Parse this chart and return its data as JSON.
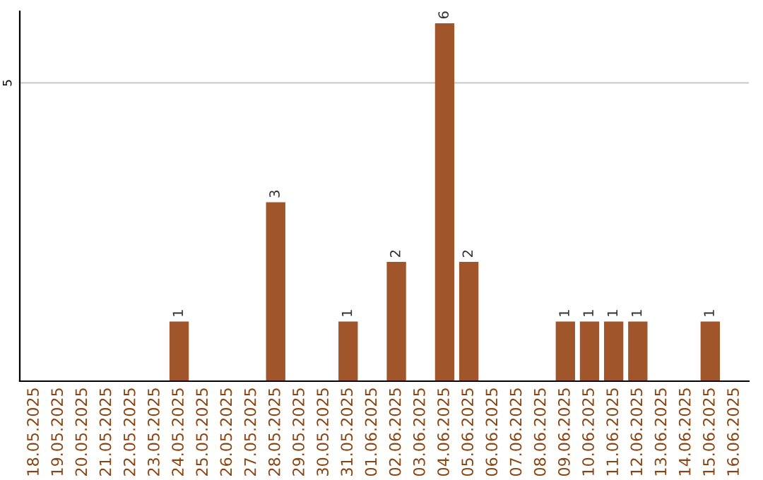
{
  "chart_data": {
    "type": "bar",
    "categories": [
      "18.05.2025",
      "19.05.2025",
      "20.05.2025",
      "21.05.2025",
      "22.05.2025",
      "23.05.2025",
      "24.05.2025",
      "25.05.2025",
      "26.05.2025",
      "27.05.2025",
      "28.05.2025",
      "29.05.2025",
      "30.05.2025",
      "31.05.2025",
      "01.06.2025",
      "02.06.2025",
      "03.06.2025",
      "04.06.2025",
      "05.06.2025",
      "06.06.2025",
      "07.06.2025",
      "08.06.2025",
      "09.06.2025",
      "10.06.2025",
      "11.06.2025",
      "12.06.2025",
      "13.06.2025",
      "14.06.2025",
      "15.06.2025",
      "16.06.2025"
    ],
    "values": [
      0,
      0,
      0,
      0,
      0,
      0,
      1,
      0,
      0,
      0,
      3,
      0,
      0,
      1,
      0,
      2,
      0,
      6,
      2,
      0,
      0,
      0,
      1,
      1,
      1,
      1,
      0,
      0,
      1,
      0
    ],
    "value_labels": [
      null,
      null,
      null,
      null,
      null,
      null,
      "1",
      null,
      null,
      null,
      "3",
      null,
      null,
      "1",
      null,
      "2",
      null,
      "6",
      "2",
      null,
      null,
      null,
      "1",
      "1",
      "1",
      "1",
      null,
      null,
      "1",
      null
    ],
    "color": "#a0552a",
    "ylim": [
      0,
      6.2
    ],
    "yticks": [
      5
    ],
    "grid": "y"
  }
}
